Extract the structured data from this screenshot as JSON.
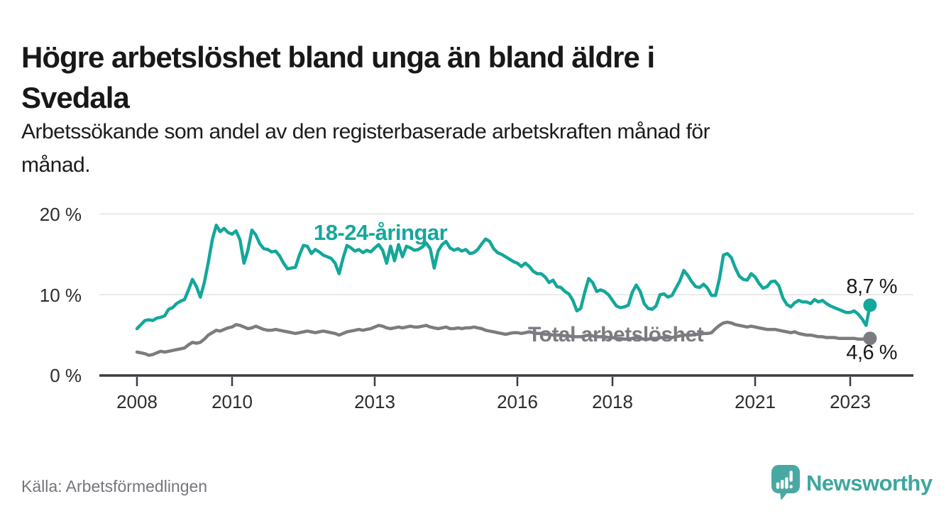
{
  "header": {
    "title_line1": "Högre arbetslöshet bland unga än bland äldre i",
    "title_line2": "Svedala",
    "subtitle_line1": "Arbetssökande som andel av den registerbaserade arbetskraften månad för",
    "subtitle_line2": "månad."
  },
  "footer": {
    "source": "Källa: Arbetsförmedlingen",
    "brand": "Newsworthy"
  },
  "colors": {
    "young_line": "#14a79b",
    "total_line": "#7c7c80",
    "grid": "#e3e3e3",
    "axis": "#3c3c41",
    "brand_teal": "#4aa8a2"
  },
  "chart_data": {
    "type": "line",
    "title": "Högre arbetslöshet bland unga än bland äldre i Svedala",
    "subtitle": "Arbetssökande som andel av den registerbaserade arbetskraften månad för månad.",
    "x_unit": "month",
    "x_start": "2008-01",
    "x_end": "2023-06",
    "ylim": [
      0,
      21.5
    ],
    "grid": true,
    "legend_position": "inline",
    "yticks": [
      {
        "value": 0,
        "label": "0 %"
      },
      {
        "value": 10,
        "label": "10 %"
      },
      {
        "value": 20,
        "label": "20 %"
      }
    ],
    "xticks": [
      {
        "year": 2008,
        "label": "2008"
      },
      {
        "year": 2010,
        "label": "2010"
      },
      {
        "year": 2013,
        "label": "2013"
      },
      {
        "year": 2016,
        "label": "2016"
      },
      {
        "year": 2018,
        "label": "2018"
      },
      {
        "year": 2021,
        "label": "2021"
      },
      {
        "year": 2023,
        "label": "2023"
      }
    ],
    "series": [
      {
        "name": "18-24-åringar",
        "color": "#14a79b",
        "end_label": "8,7 %",
        "end_value": 8.7,
        "values": [
          5.8,
          6.3,
          6.8,
          6.9,
          6.8,
          7.1,
          7.2,
          7.4,
          8.2,
          8.4,
          8.9,
          9.2,
          9.4,
          10.6,
          11.9,
          11.0,
          9.7,
          11.5,
          14.0,
          16.8,
          18.6,
          17.8,
          18.2,
          17.7,
          17.5,
          17.9,
          16.8,
          13.9,
          15.5,
          18.0,
          17.4,
          16.3,
          15.7,
          15.6,
          15.3,
          15.4,
          14.8,
          13.9,
          13.2,
          13.3,
          13.4,
          14.9,
          16.1,
          16.0,
          15.1,
          15.6,
          15.3,
          14.9,
          14.7,
          14.5,
          13.9,
          12.6,
          14.5,
          16.1,
          15.8,
          15.4,
          15.6,
          15.2,
          15.5,
          15.3,
          15.8,
          16.2,
          15.5,
          13.9,
          16.0,
          14.2,
          16.2,
          14.7,
          16.0,
          15.8,
          15.5,
          15.6,
          15.9,
          16.4,
          15.7,
          13.3,
          15.4,
          16.2,
          16.6,
          15.8,
          15.5,
          15.7,
          15.4,
          15.6,
          15.1,
          15.2,
          15.6,
          16.3,
          16.9,
          16.6,
          15.7,
          15.2,
          15.0,
          14.7,
          14.4,
          14.1,
          13.9,
          13.5,
          13.9,
          13.5,
          12.9,
          12.6,
          12.6,
          12.2,
          11.5,
          11.8,
          11.0,
          10.9,
          10.4,
          10.1,
          9.3,
          8.0,
          8.3,
          10.3,
          12.0,
          11.5,
          10.4,
          10.6,
          10.4,
          10.0,
          9.3,
          8.6,
          8.4,
          8.5,
          8.7,
          10.3,
          11.2,
          10.4,
          8.9,
          8.3,
          8.2,
          8.6,
          10.0,
          10.1,
          9.7,
          9.9,
          10.8,
          11.7,
          13.0,
          12.4,
          11.6,
          11.0,
          10.9,
          11.3,
          10.8,
          9.9,
          9.9,
          12.0,
          14.9,
          15.1,
          14.6,
          13.3,
          12.3,
          11.9,
          11.8,
          12.6,
          12.2,
          11.4,
          10.8,
          11.0,
          11.6,
          11.7,
          11.1,
          9.6,
          8.8,
          8.5,
          9.0,
          9.3,
          9.1,
          9.1,
          8.9,
          9.4,
          9.1,
          9.3,
          8.9,
          8.6,
          8.4,
          8.2,
          8.0,
          7.8,
          7.8,
          8.0,
          7.6,
          7.0,
          6.2,
          8.7
        ]
      },
      {
        "name": "Total arbetslöshet",
        "color": "#7c7c80",
        "end_label": "4,6 %",
        "end_value": 4.6,
        "values": [
          2.9,
          2.8,
          2.7,
          2.5,
          2.6,
          2.8,
          3.0,
          2.9,
          3.0,
          3.1,
          3.2,
          3.3,
          3.4,
          3.8,
          4.1,
          4.0,
          4.1,
          4.5,
          5.0,
          5.3,
          5.6,
          5.5,
          5.7,
          5.9,
          6.0,
          6.3,
          6.2,
          6.0,
          5.8,
          5.9,
          6.1,
          5.9,
          5.7,
          5.6,
          5.6,
          5.7,
          5.6,
          5.5,
          5.4,
          5.3,
          5.2,
          5.3,
          5.4,
          5.5,
          5.4,
          5.3,
          5.4,
          5.5,
          5.4,
          5.3,
          5.2,
          5.0,
          5.2,
          5.4,
          5.5,
          5.6,
          5.7,
          5.6,
          5.7,
          5.8,
          6.0,
          6.2,
          6.1,
          5.9,
          5.8,
          5.9,
          6.0,
          5.9,
          6.0,
          6.1,
          6.0,
          6.0,
          6.1,
          6.2,
          6.0,
          5.9,
          5.8,
          5.9,
          6.0,
          5.8,
          5.8,
          5.9,
          5.8,
          5.9,
          5.9,
          6.0,
          5.9,
          5.8,
          5.6,
          5.5,
          5.4,
          5.3,
          5.2,
          5.1,
          5.2,
          5.3,
          5.3,
          5.2,
          5.3,
          5.4,
          5.3,
          5.2,
          5.2,
          5.1,
          5.1,
          5.0,
          5.0,
          5.0,
          4.9,
          4.9,
          4.8,
          4.8,
          4.8,
          4.9,
          5.0,
          4.9,
          4.8,
          4.8,
          4.8,
          4.7,
          4.7,
          4.6,
          4.6,
          4.5,
          4.5,
          4.6,
          4.7,
          4.6,
          4.5,
          4.5,
          4.6,
          4.6,
          4.7,
          4.7,
          4.7,
          4.7,
          4.8,
          4.9,
          5.0,
          5.0,
          5.0,
          5.1,
          5.1,
          5.2,
          5.2,
          5.3,
          5.8,
          6.2,
          6.5,
          6.6,
          6.5,
          6.3,
          6.2,
          6.1,
          6.0,
          6.1,
          6.0,
          5.9,
          5.8,
          5.7,
          5.7,
          5.7,
          5.6,
          5.5,
          5.4,
          5.3,
          5.4,
          5.2,
          5.1,
          5.0,
          5.0,
          4.9,
          4.8,
          4.8,
          4.7,
          4.7,
          4.7,
          4.6,
          4.6,
          4.6,
          4.6,
          4.6,
          4.5,
          4.5,
          4.5,
          4.6
        ]
      }
    ],
    "source": "Källa: Arbetsförmedlingen"
  }
}
